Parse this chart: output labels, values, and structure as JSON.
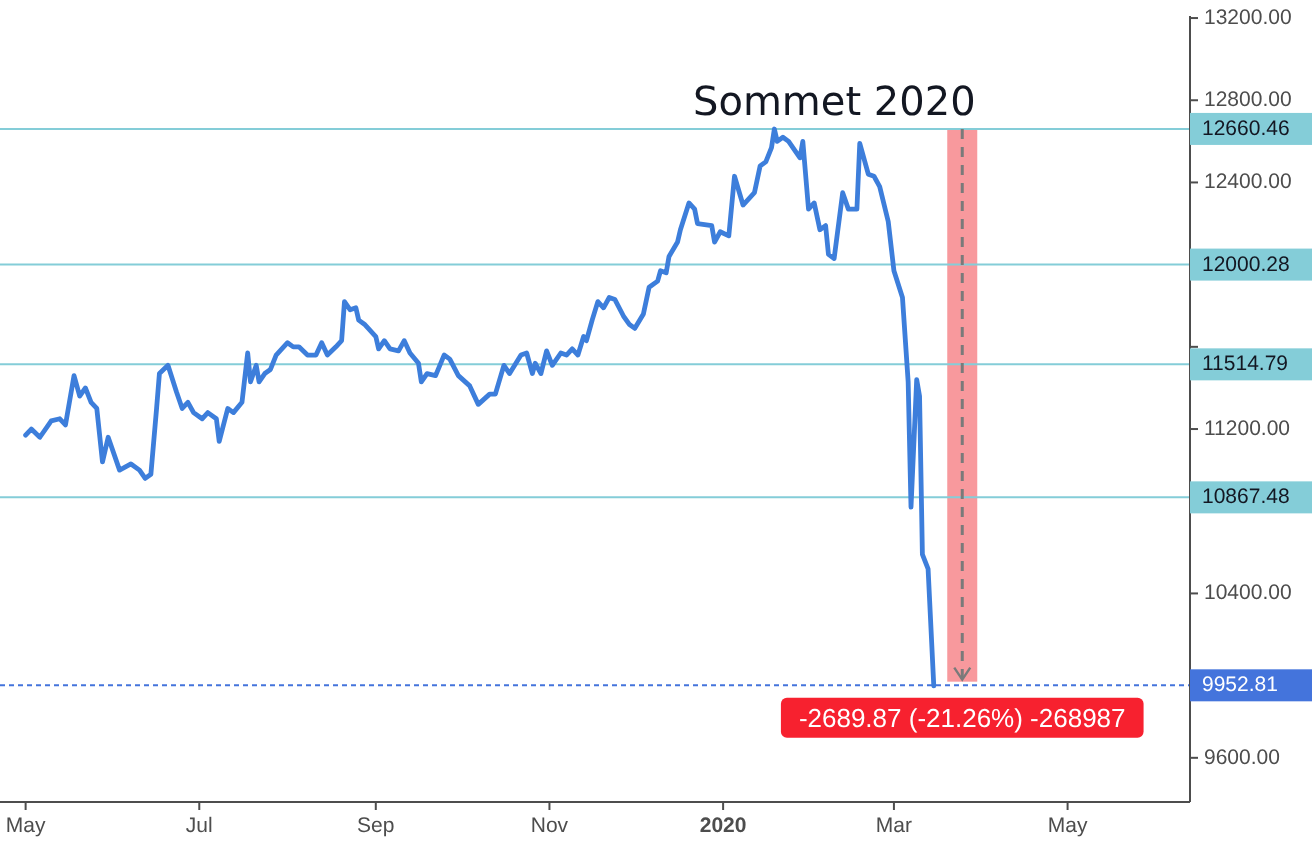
{
  "chart_data": {
    "type": "line",
    "x": [
      "2019-05-01",
      "2019-05-03",
      "2019-05-06",
      "2019-05-10",
      "2019-05-13",
      "2019-05-15",
      "2019-05-18",
      "2019-05-20",
      "2019-05-22",
      "2019-05-24",
      "2019-05-26",
      "2019-05-28",
      "2019-05-30",
      "2019-06-03",
      "2019-06-07",
      "2019-06-10",
      "2019-06-12",
      "2019-06-14",
      "2019-06-16",
      "2019-06-17",
      "2019-06-20",
      "2019-06-23",
      "2019-06-25",
      "2019-06-27",
      "2019-06-29",
      "2019-07-02",
      "2019-07-04",
      "2019-07-07",
      "2019-07-08",
      "2019-07-11",
      "2019-07-13",
      "2019-07-16",
      "2019-07-18",
      "2019-07-19",
      "2019-07-21",
      "2019-07-22",
      "2019-07-24",
      "2019-07-26",
      "2019-07-28",
      "2019-08-01",
      "2019-08-03",
      "2019-08-05",
      "2019-08-08",
      "2019-08-11",
      "2019-08-13",
      "2019-08-15",
      "2019-08-18",
      "2019-08-20",
      "2019-08-21",
      "2019-08-23",
      "2019-08-25",
      "2019-08-26",
      "2019-08-28",
      "2019-09-01",
      "2019-09-02",
      "2019-09-04",
      "2019-09-06",
      "2019-09-09",
      "2019-09-11",
      "2019-09-13",
      "2019-09-16",
      "2019-09-17",
      "2019-09-19",
      "2019-09-22",
      "2019-09-25",
      "2019-09-27",
      "2019-09-30",
      "2019-10-04",
      "2019-10-07",
      "2019-10-11",
      "2019-10-13",
      "2019-10-16",
      "2019-10-18",
      "2019-10-22",
      "2019-10-24",
      "2019-10-26",
      "2019-10-27",
      "2019-10-29",
      "2019-10-31",
      "2019-11-02",
      "2019-11-05",
      "2019-11-07",
      "2019-11-09",
      "2019-11-11",
      "2019-11-13",
      "2019-11-14",
      "2019-11-16",
      "2019-11-18",
      "2019-11-20",
      "2019-11-22",
      "2019-11-24",
      "2019-11-27",
      "2019-11-29",
      "2019-12-01",
      "2019-12-04",
      "2019-12-06",
      "2019-12-09",
      "2019-12-10",
      "2019-12-12",
      "2019-12-13",
      "2019-12-16",
      "2019-12-17",
      "2019-12-20",
      "2019-12-22",
      "2019-12-23",
      "2019-12-28",
      "2019-12-29",
      "2019-12-31",
      "2020-01-03",
      "2020-01-05",
      "2020-01-08",
      "2020-01-12",
      "2020-01-14",
      "2020-01-16",
      "2020-01-18",
      "2020-01-19",
      "2020-01-20",
      "2020-01-22",
      "2020-01-24",
      "2020-01-28",
      "2020-01-29",
      "2020-01-31",
      "2020-02-02",
      "2020-02-04",
      "2020-02-06",
      "2020-02-07",
      "2020-02-09",
      "2020-02-12",
      "2020-02-14",
      "2020-02-17",
      "2020-02-18",
      "2020-02-21",
      "2020-02-23",
      "2020-02-25",
      "2020-02-28",
      "2020-03-01",
      "2020-03-04",
      "2020-03-06",
      "2020-03-07",
      "2020-03-09",
      "2020-03-10",
      "2020-03-11",
      "2020-03-13",
      "2020-03-15"
    ],
    "series": [
      {
        "color": "#3d7edb",
        "values": [
          11170,
          11200,
          11160,
          11240,
          11250,
          11220,
          11460,
          11360,
          11400,
          11330,
          11300,
          11040,
          11160,
          11000,
          11030,
          11000,
          10960,
          10980,
          11300,
          11470,
          11510,
          11380,
          11300,
          11330,
          11280,
          11250,
          11280,
          11250,
          11140,
          11300,
          11280,
          11330,
          11570,
          11430,
          11510,
          11430,
          11470,
          11490,
          11560,
          11620,
          11600,
          11600,
          11560,
          11560,
          11620,
          11560,
          11600,
          11630,
          11820,
          11780,
          11790,
          11730,
          11710,
          11650,
          11590,
          11630,
          11590,
          11580,
          11630,
          11570,
          11520,
          11430,
          11470,
          11460,
          11560,
          11540,
          11460,
          11410,
          11320,
          11370,
          11370,
          11510,
          11470,
          11560,
          11570,
          11470,
          11520,
          11470,
          11580,
          11510,
          11570,
          11560,
          11590,
          11560,
          11650,
          11630,
          11730,
          11820,
          11790,
          11840,
          11830,
          11750,
          11710,
          11690,
          11760,
          11890,
          11920,
          11970,
          11960,
          12040,
          12110,
          12170,
          12300,
          12270,
          12200,
          12190,
          12110,
          12160,
          12140,
          12430,
          12290,
          12350,
          12480,
          12500,
          12570,
          12660,
          12600,
          12620,
          12600,
          12520,
          12600,
          12270,
          12300,
          12170,
          12190,
          12050,
          12030,
          12350,
          12270,
          12270,
          12590,
          12440,
          12430,
          12380,
          12210,
          11970,
          11840,
          11430,
          10820,
          11440,
          11360,
          10590,
          10520,
          9950
        ]
      },
      {
        "type": "bar",
        "color": "#f8999d",
        "x": [
          "2020-03-25"
        ],
        "values": [
          -2689.87
        ],
        "base": [
          12660.46
        ],
        "value_labels": [
          "-2689.87 (-21.26%) -268987"
        ]
      }
    ],
    "xlim": [
      "2019-04-22",
      "2020-06-13"
    ],
    "xticks": [
      {
        "value": "2019-05-01",
        "label": "May"
      },
      {
        "value": "2019-07-01",
        "label": "Jul"
      },
      {
        "value": "2019-09-01",
        "label": "Sep"
      },
      {
        "value": "2019-11-01",
        "label": "Nov"
      },
      {
        "value": "2020-01-01",
        "label": "2020"
      },
      {
        "value": "2020-03-01",
        "label": "Mar"
      },
      {
        "value": "2020-05-01",
        "label": "May"
      }
    ],
    "ylim": [
      9385,
      13210
    ],
    "yticks": [
      {
        "value": 9600,
        "label": "9600.00"
      },
      {
        "value": 10000,
        "label": null
      },
      {
        "value": 10400,
        "label": "10400.00"
      },
      {
        "value": 10800,
        "label": null
      },
      {
        "value": 11200,
        "label": "11200.00"
      },
      {
        "value": 11600,
        "label": null
      },
      {
        "value": 12000,
        "label": null
      },
      {
        "value": 12400,
        "label": "12400.00"
      },
      {
        "value": 12800,
        "label": "12800.00"
      },
      {
        "value": 13200,
        "label": "13200.00"
      }
    ],
    "ref_lines": [
      {
        "axis": "y",
        "value": 12660.46,
        "label": "12660.46",
        "color": "#84cdd8"
      },
      {
        "axis": "y",
        "value": 12000.28,
        "label": "12000.28",
        "color": "#84cdd8"
      },
      {
        "axis": "y",
        "value": 11514.79,
        "label": "11514.79",
        "color": "#84cdd8"
      },
      {
        "axis": "y",
        "value": 10867.48,
        "label": "10867.48",
        "color": "#84cdd8"
      },
      {
        "axis": "y",
        "value": 9952.81,
        "label": "9952.81",
        "color": "#4474dc",
        "line_style": "dotted"
      }
    ],
    "annotations": [
      {
        "text": "Sommet 2020",
        "x": "2020-01-19",
        "y": 12660.46
      }
    ]
  }
}
